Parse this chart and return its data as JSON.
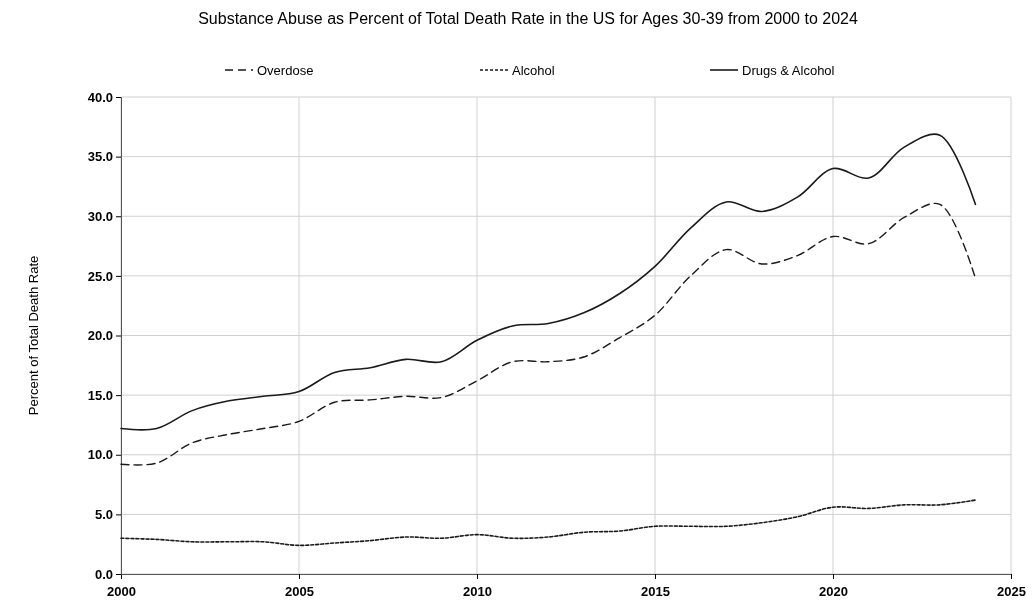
{
  "chart_data": {
    "type": "line",
    "title": "Substance Abuse as Percent of Total Death Rate in the US for Ages 30-39 from 2000 to 2024",
    "ylabel": "Percent of Total Death Rate",
    "x": [
      2000,
      2001,
      2002,
      2003,
      2004,
      2005,
      2006,
      2007,
      2008,
      2009,
      2010,
      2011,
      2012,
      2013,
      2014,
      2015,
      2016,
      2017,
      2018,
      2019,
      2020,
      2021,
      2022,
      2023,
      2024
    ],
    "series": [
      {
        "name": "Overdose",
        "color": "#1a1a1a",
        "line_style": "dashed",
        "values": [
          9.2,
          9.3,
          11.0,
          11.7,
          12.2,
          12.8,
          14.4,
          14.6,
          14.9,
          14.8,
          16.2,
          17.8,
          17.8,
          18.2,
          19.8,
          21.7,
          25.0,
          27.2,
          26.0,
          26.7,
          28.3,
          27.7,
          29.9,
          31.0,
          24.8
        ]
      },
      {
        "name": "Alcohol",
        "color": "#1a1a1a",
        "line_style": "dotted",
        "values": [
          3.0,
          2.9,
          2.7,
          2.7,
          2.7,
          2.4,
          2.6,
          2.8,
          3.1,
          3.0,
          3.3,
          3.0,
          3.1,
          3.5,
          3.6,
          4.0,
          4.0,
          4.0,
          4.3,
          4.8,
          5.6,
          5.5,
          5.8,
          5.8,
          6.2
        ]
      },
      {
        "name": "Drugs & Alcohol",
        "color": "#1a1a1a",
        "line_style": "solid",
        "values": [
          12.2,
          12.2,
          13.7,
          14.5,
          14.9,
          15.3,
          16.9,
          17.3,
          18.0,
          17.8,
          19.6,
          20.8,
          21.0,
          21.9,
          23.5,
          25.8,
          29.0,
          31.2,
          30.4,
          31.6,
          34.0,
          33.2,
          35.8,
          36.8,
          31.0
        ]
      }
    ],
    "xlim": [
      2000,
      2025
    ],
    "xticks": [
      2000,
      2005,
      2010,
      2015,
      2020,
      2025
    ],
    "ylim": [
      0,
      40
    ],
    "yticks": [
      {
        "value": 0,
        "label": "0.0"
      },
      {
        "value": 5,
        "label": "5.0"
      },
      {
        "value": 10,
        "label": "10.0"
      },
      {
        "value": 15,
        "label": "15.0"
      },
      {
        "value": 20,
        "label": "20.0"
      },
      {
        "value": 25,
        "label": "25.0"
      },
      {
        "value": 30,
        "label": "30.0"
      },
      {
        "value": 35,
        "label": "35.0"
      },
      {
        "value": 40,
        "label": "40.0"
      }
    ],
    "grid": true,
    "legend": "top",
    "marker": "none"
  }
}
